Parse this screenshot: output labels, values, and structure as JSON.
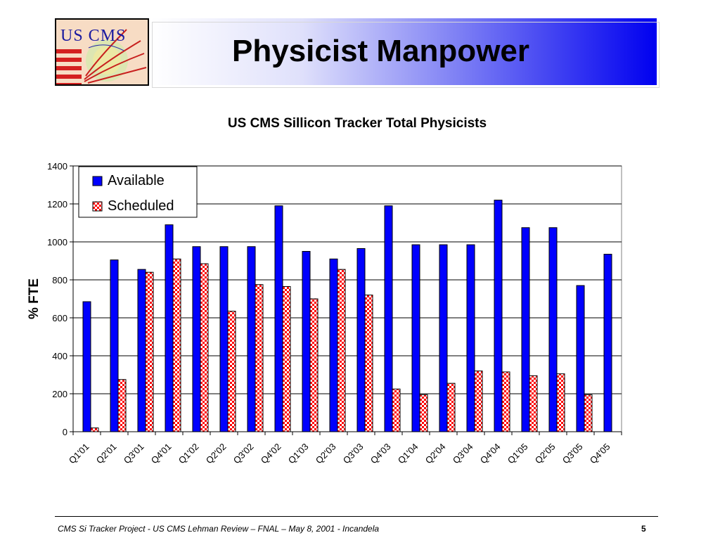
{
  "slide": {
    "title": "Physicist Manpower",
    "logo_text": "US CMS",
    "footer": "CMS Si Tracker Project - US CMS Lehman Review – FNAL – May 8, 2001 - Incandela",
    "page_number": "5"
  },
  "colors": {
    "available": "#0000ff",
    "scheduled_fill": "#ffffff",
    "scheduled_pattern": "#ff0000",
    "title_gradient_end": "#0000f0"
  },
  "chart_data": {
    "type": "bar",
    "title": "US CMS Sillicon Tracker Total Physicists",
    "xlabel": "",
    "ylabel": "% FTE",
    "ylim": [
      0,
      1400
    ],
    "yticks": [
      0,
      200,
      400,
      600,
      800,
      1000,
      1200,
      1400
    ],
    "grid": true,
    "legend_position": "top-left",
    "categories": [
      "Q1'01",
      "Q2'01",
      "Q3'01",
      "Q4'01",
      "Q1'02",
      "Q2'02",
      "Q3'02",
      "Q4'02",
      "Q1'03",
      "Q2'03",
      "Q3'03",
      "Q4'03",
      "Q1'04",
      "Q2'04",
      "Q3'04",
      "Q4'04",
      "Q1'05",
      "Q2'05",
      "Q3'05",
      "Q4'05"
    ],
    "series": [
      {
        "name": "Available",
        "values": [
          685,
          905,
          855,
          1090,
          975,
          975,
          975,
          1190,
          950,
          910,
          965,
          1190,
          985,
          985,
          985,
          1220,
          1075,
          1075,
          770,
          935
        ]
      },
      {
        "name": "Scheduled",
        "values": [
          20,
          275,
          840,
          910,
          885,
          635,
          775,
          765,
          700,
          855,
          720,
          225,
          195,
          255,
          320,
          315,
          295,
          305,
          195,
          null
        ]
      }
    ]
  }
}
